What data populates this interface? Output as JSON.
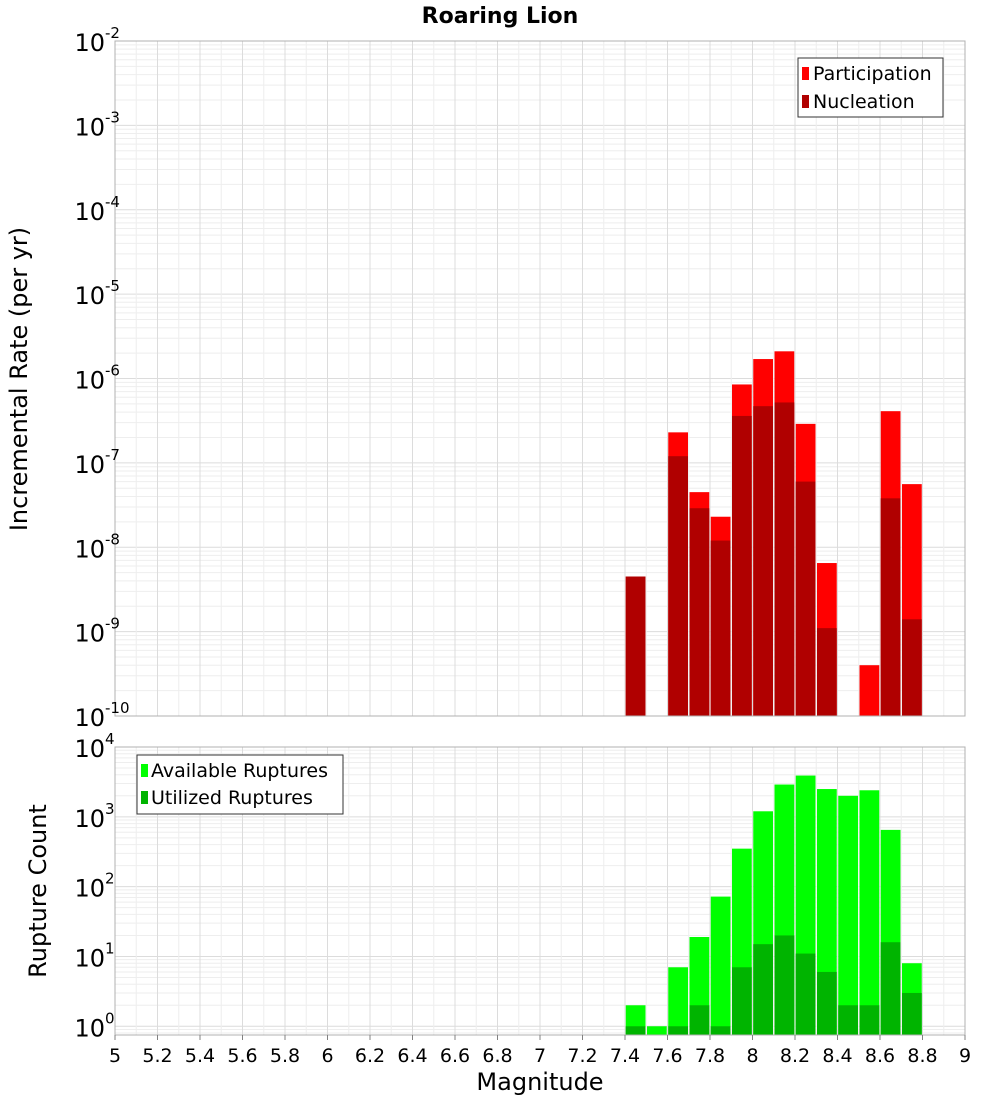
{
  "chart_data": [
    {
      "type": "bar",
      "title": "Roaring Lion",
      "xlabel": "",
      "ylabel": "Incremental Rate (per yr)",
      "yscale": "log",
      "ylim": [
        1e-10,
        0.01
      ],
      "xlim": [
        5,
        9
      ],
      "y_ticks": [
        {
          "base": "10",
          "exp": "-2"
        },
        {
          "base": "10",
          "exp": "-3"
        },
        {
          "base": "10",
          "exp": "-4"
        },
        {
          "base": "10",
          "exp": "-5"
        },
        {
          "base": "10",
          "exp": "-6"
        },
        {
          "base": "10",
          "exp": "-7"
        },
        {
          "base": "10",
          "exp": "-8"
        },
        {
          "base": "10",
          "exp": "-9"
        },
        {
          "base": "10",
          "exp": "-10"
        }
      ],
      "legend_position": "top-right",
      "grid": true,
      "x": [
        7.45,
        7.55,
        7.65,
        7.75,
        7.85,
        7.95,
        8.05,
        8.15,
        8.25,
        8.35,
        8.45,
        8.55,
        8.65,
        8.75
      ],
      "series": [
        {
          "name": "Participation",
          "color": "#ff0000",
          "values": [
            4.5e-09,
            null,
            2.3e-07,
            4.5e-08,
            2.3e-08,
            8.5e-07,
            1.7e-06,
            2.1e-06,
            2.9e-07,
            6.5e-09,
            null,
            4e-10,
            4.1e-07,
            5.6e-08
          ]
        },
        {
          "name": "Nucleation",
          "color": "#b00000",
          "values": [
            4.5e-09,
            null,
            1.2e-07,
            2.9e-08,
            1.2e-08,
            3.6e-07,
            4.7e-07,
            5.2e-07,
            6e-08,
            1.1e-09,
            null,
            null,
            3.8e-08,
            1.4e-09
          ]
        }
      ]
    },
    {
      "type": "bar",
      "title": "",
      "xlabel": "Magnitude",
      "ylabel": "Rupture Count",
      "yscale": "log",
      "ylim": [
        0.75,
        10000
      ],
      "xlim": [
        5,
        9
      ],
      "x_ticks": [
        "5",
        "5.2",
        "5.4",
        "5.6",
        "5.8",
        "6",
        "6.2",
        "6.4",
        "6.6",
        "6.8",
        "7",
        "7.2",
        "7.4",
        "7.6",
        "7.8",
        "8",
        "8.2",
        "8.4",
        "8.6",
        "8.8",
        "9"
      ],
      "y_ticks": [
        {
          "base": "10",
          "exp": "4"
        },
        {
          "base": "10",
          "exp": "3"
        },
        {
          "base": "10",
          "exp": "2"
        },
        {
          "base": "10",
          "exp": "1"
        },
        {
          "base": "10",
          "exp": "0"
        }
      ],
      "legend_position": "top-left",
      "grid": true,
      "x": [
        7.45,
        7.55,
        7.65,
        7.75,
        7.85,
        7.95,
        8.05,
        8.15,
        8.25,
        8.35,
        8.45,
        8.55,
        8.65,
        8.75
      ],
      "series": [
        {
          "name": "Available Ruptures",
          "color": "#00ff00",
          "values": [
            2,
            1,
            7,
            19,
            72,
            350,
            1200,
            2900,
            3900,
            2500,
            2000,
            2400,
            650,
            8
          ]
        },
        {
          "name": "Utilized Ruptures",
          "color": "#00b400",
          "values": [
            1,
            null,
            1,
            2,
            1,
            7,
            15,
            20,
            11,
            6,
            2,
            2,
            16,
            3
          ]
        }
      ]
    }
  ]
}
